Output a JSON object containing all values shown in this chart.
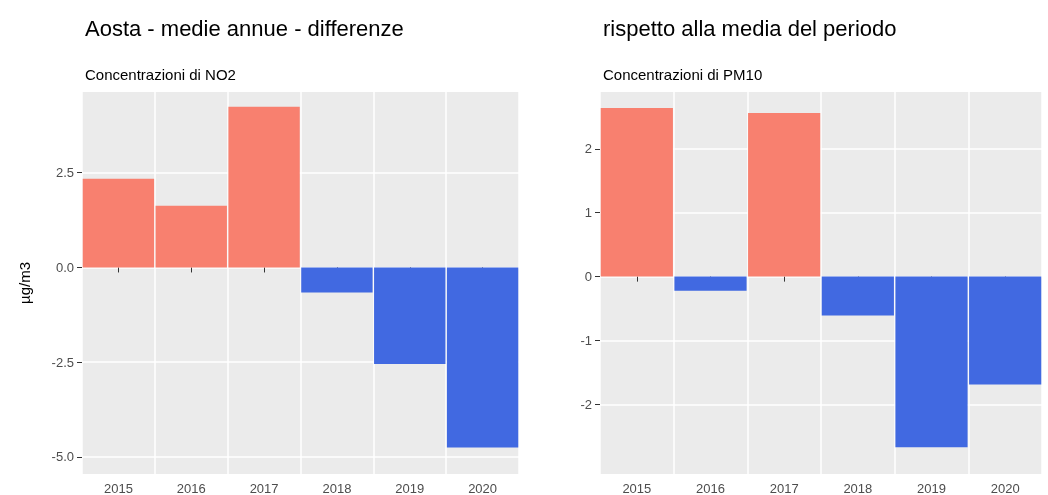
{
  "chart_data": [
    {
      "type": "bar",
      "title": "Aosta - medie annue - differenze",
      "subtitle": "Concentrazioni di NO2",
      "ylabel": "µg/m3",
      "categories": [
        "2015",
        "2016",
        "2017",
        "2018",
        "2019",
        "2020"
      ],
      "values": [
        2.34,
        1.63,
        4.24,
        -0.66,
        -2.55,
        -4.75
      ],
      "colors": [
        "#f8806f",
        "#f8806f",
        "#f8806f",
        "#4169e1",
        "#4169e1",
        "#4169e1"
      ],
      "ylim": [
        -5.45,
        4.63
      ],
      "yticks": [
        {
          "value": -5,
          "label": "-5.0"
        },
        {
          "value": -2.5,
          "label": "-2.5"
        },
        {
          "value": 0,
          "label": "0.0"
        },
        {
          "value": 2.5,
          "label": "2.5"
        }
      ],
      "grid": true
    },
    {
      "type": "bar",
      "title": "rispetto alla media del periodo",
      "subtitle": "Concentrazioni di PM10",
      "categories": [
        "2015",
        "2016",
        "2017",
        "2018",
        "2019",
        "2020"
      ],
      "values": [
        2.64,
        -0.22,
        2.56,
        -0.61,
        -2.67,
        -1.69
      ],
      "colors": [
        "#f8806f",
        "#4169e1",
        "#f8806f",
        "#4169e1",
        "#4169e1",
        "#4169e1"
      ],
      "ylim": [
        -3.09,
        2.89
      ],
      "yticks": [
        -2,
        -1,
        0,
        1,
        2
      ],
      "grid": true
    }
  ]
}
